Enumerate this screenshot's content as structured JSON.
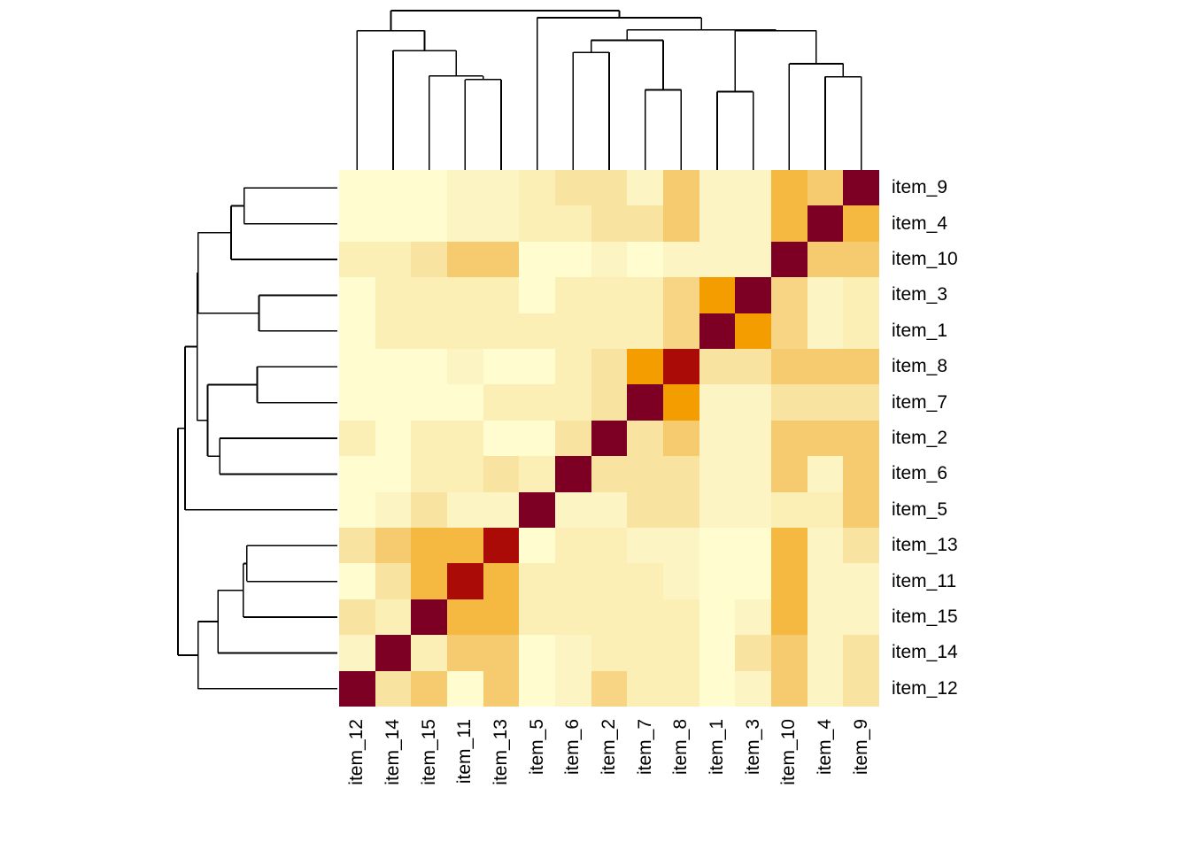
{
  "figure": {
    "background_color": "#FFFFFF",
    "plot_kind": "clustered correlation/similarity heatmap with row and column dendrograms"
  },
  "chart_data": {
    "type": "heatmap",
    "title": "",
    "xlabel": "",
    "ylabel": "",
    "legend": "none",
    "rows_top_to_bottom": [
      "item_9",
      "item_4",
      "item_10",
      "item_3",
      "item_1",
      "item_8",
      "item_7",
      "item_2",
      "item_6",
      "item_5",
      "item_13",
      "item_11",
      "item_15",
      "item_14",
      "item_12"
    ],
    "columns_left_to_right": [
      "item_12",
      "item_14",
      "item_15",
      "item_11",
      "item_13",
      "item_5",
      "item_6",
      "item_2",
      "item_7",
      "item_8",
      "item_1",
      "item_3",
      "item_10",
      "item_4",
      "item_9"
    ],
    "palette_low_to_high": [
      "#FFFDCF",
      "#FCF4C2",
      "#FBEFB5",
      "#F9E3A1",
      "#F7D585",
      "#F6CB70",
      "#F5B942",
      "#F49D00",
      "#AA0B06",
      "#7D0024"
    ],
    "palette_semantics": "0 = lowest value (pale yellow), 9 = highest value (dark maroon, diagonal self-match); 8 = bright crimson near-max seen on item_8 / item_13 / item_11 diagonals",
    "cell_color_levels": [
      [
        0,
        0,
        0,
        1,
        1,
        2,
        3,
        3,
        1,
        5,
        1,
        1,
        6,
        5,
        9
      ],
      [
        0,
        0,
        0,
        1,
        1,
        2,
        2,
        3,
        3,
        5,
        1,
        1,
        6,
        9,
        6
      ],
      [
        2,
        2,
        3,
        5,
        5,
        0,
        0,
        1,
        0,
        1,
        1,
        1,
        9,
        5,
        5
      ],
      [
        0,
        2,
        2,
        2,
        2,
        0,
        2,
        2,
        2,
        4,
        7,
        9,
        4,
        1,
        2
      ],
      [
        0,
        2,
        2,
        2,
        2,
        2,
        2,
        2,
        2,
        4,
        9,
        7,
        4,
        1,
        2
      ],
      [
        0,
        0,
        0,
        1,
        0,
        0,
        2,
        3,
        7,
        8,
        3,
        3,
        5,
        5,
        5
      ],
      [
        0,
        0,
        0,
        0,
        2,
        2,
        2,
        3,
        9,
        7,
        1,
        1,
        3,
        3,
        3
      ],
      [
        2,
        0,
        2,
        2,
        0,
        0,
        3,
        9,
        3,
        5,
        1,
        1,
        5,
        5,
        5
      ],
      [
        0,
        0,
        2,
        2,
        3,
        2,
        9,
        3,
        3,
        3,
        1,
        1,
        5,
        1,
        5
      ],
      [
        0,
        1,
        3,
        1,
        1,
        9,
        1,
        1,
        3,
        3,
        1,
        1,
        2,
        2,
        5
      ],
      [
        3,
        5,
        6,
        6,
        8,
        0,
        2,
        2,
        1,
        1,
        0,
        0,
        6,
        1,
        3
      ],
      [
        0,
        3,
        6,
        8,
        6,
        2,
        2,
        2,
        2,
        1,
        0,
        0,
        6,
        1,
        1
      ],
      [
        3,
        2,
        9,
        6,
        6,
        2,
        2,
        2,
        2,
        2,
        0,
        1,
        6,
        1,
        1
      ],
      [
        1,
        9,
        2,
        5,
        5,
        0,
        1,
        2,
        2,
        2,
        0,
        3,
        5,
        1,
        3
      ],
      [
        9,
        3,
        5,
        0,
        5,
        0,
        1,
        4,
        2,
        2,
        0,
        1,
        5,
        1,
        3
      ]
    ],
    "dendrogram_tree": {
      "h": 1.0,
      "c": [
        {
          "h": 0.874,
          "c": [
            {
              "leaf": "item_12"
            },
            {
              "h": 0.749,
              "c": [
                {
                  "leaf": "item_14"
                },
                {
                  "h": 0.59,
                  "c": [
                    {
                      "leaf": "item_15"
                    },
                    {
                      "h": 0.568,
                      "c": [
                        {
                          "leaf": "item_11"
                        },
                        {
                          "leaf": "item_13"
                        }
                      ]
                    }
                  ]
                }
              ]
            }
          ]
        },
        {
          "h": 0.956,
          "c": [
            {
              "leaf": "item_5"
            },
            {
              "h": 0.88,
              "c": [
                {
                  "h": 0.814,
                  "c": [
                    {
                      "h": 0.738,
                      "c": [
                        {
                          "leaf": "item_6"
                        },
                        {
                          "leaf": "item_2"
                        }
                      ]
                    },
                    {
                      "h": 0.503,
                      "c": [
                        {
                          "leaf": "item_7"
                        },
                        {
                          "leaf": "item_8"
                        }
                      ]
                    }
                  ]
                },
                {
                  "h": 0.874,
                  "c": [
                    {
                      "h": 0.492,
                      "c": [
                        {
                          "leaf": "item_1"
                        },
                        {
                          "leaf": "item_3"
                        }
                      ]
                    },
                    {
                      "h": 0.667,
                      "c": [
                        {
                          "leaf": "item_10"
                        },
                        {
                          "h": 0.585,
                          "c": [
                            {
                              "leaf": "item_4"
                            },
                            {
                              "leaf": "item_9"
                            }
                          ]
                        }
                      ]
                    }
                  ]
                }
              ]
            }
          ]
        }
      ]
    },
    "axes": {
      "row_label_side": "right",
      "col_label_side": "bottom",
      "col_label_rotation_deg": 90,
      "grid": "off"
    },
    "line_color": "#000000"
  }
}
